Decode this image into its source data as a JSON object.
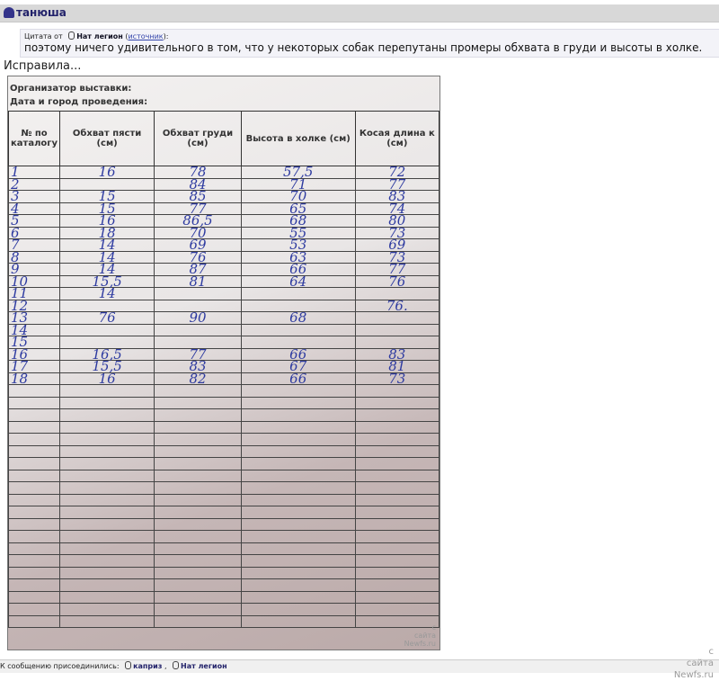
{
  "post": {
    "author": "танюша",
    "body": "Исправила..."
  },
  "quote": {
    "prefix": "Цитата от",
    "author": "Нат легион",
    "source_label": "источник",
    "text": "поэтому ничего удивительного в том, что у некоторых собак перепутаны промеры обхвата в груди и высоты в холке."
  },
  "photo": {
    "org_line1": "Организатор выставки:",
    "org_line2": "Дата и город проведения:",
    "headers": [
      "№ по каталогу",
      "Обхват пясти (см)",
      "Обхват груди (см)",
      "Высота в холке (см)",
      "Косая длина к (см)"
    ],
    "rows": [
      [
        "1",
        "16",
        "78",
        "57,5",
        "72"
      ],
      [
        "2",
        "",
        "84",
        "71",
        "77"
      ],
      [
        "3",
        "15",
        "85",
        "70",
        "83"
      ],
      [
        "4",
        "15",
        "77",
        "65",
        "74"
      ],
      [
        "5",
        "16",
        "86,5",
        "68",
        "80"
      ],
      [
        "6",
        "18",
        "70",
        "55",
        "73"
      ],
      [
        "7",
        "14",
        "69",
        "53",
        "69"
      ],
      [
        "8",
        "14",
        "76",
        "63",
        "73"
      ],
      [
        "9",
        "14",
        "87",
        "66",
        "77"
      ],
      [
        "10",
        "15,5",
        "81",
        "64",
        "76"
      ],
      [
        "11",
        "14",
        "",
        "",
        ""
      ],
      [
        "12",
        "",
        "",
        "",
        "76."
      ],
      [
        "13",
        "76",
        "90",
        "68",
        ""
      ],
      [
        "14",
        "",
        "",
        "",
        ""
      ],
      [
        "15",
        "",
        "",
        "",
        ""
      ],
      [
        "16",
        "16,5",
        "77",
        "66",
        "83"
      ],
      [
        "17",
        "15,5",
        "83",
        "67",
        "81"
      ],
      [
        "18",
        "16",
        "82",
        "66",
        "73"
      ],
      [
        "",
        "",
        "",
        "",
        ""
      ],
      [
        "",
        "",
        "",
        "",
        ""
      ],
      [
        "",
        "",
        "",
        "",
        ""
      ],
      [
        "",
        "",
        "",
        "",
        ""
      ],
      [
        "",
        "",
        "",
        "",
        ""
      ],
      [
        "",
        "",
        "",
        "",
        ""
      ],
      [
        "",
        "",
        "",
        "",
        ""
      ],
      [
        "",
        "",
        "",
        "",
        ""
      ],
      [
        "",
        "",
        "",
        "",
        ""
      ],
      [
        "",
        "",
        "",
        "",
        ""
      ],
      [
        "",
        "",
        "",
        "",
        ""
      ],
      [
        "",
        "",
        "",
        "",
        ""
      ],
      [
        "",
        "",
        "",
        "",
        ""
      ],
      [
        "",
        "",
        "",
        "",
        ""
      ],
      [
        "",
        "",
        "",
        "",
        ""
      ],
      [
        "",
        "",
        "",
        "",
        ""
      ],
      [
        "",
        "",
        "",
        "",
        ""
      ],
      [
        "",
        "",
        "",
        "",
        ""
      ],
      [
        "",
        "",
        "",
        "",
        ""
      ],
      [
        "",
        "",
        "",
        "",
        ""
      ]
    ],
    "watermark": [
      "с",
      "сайта",
      "Newfs.ru"
    ]
  },
  "footer": {
    "label": "К сообщению присоединились:",
    "users": [
      "каприз",
      "Нат легион"
    ]
  },
  "page_watermark": [
    "с",
    "сайта",
    "Newfs.ru"
  ]
}
